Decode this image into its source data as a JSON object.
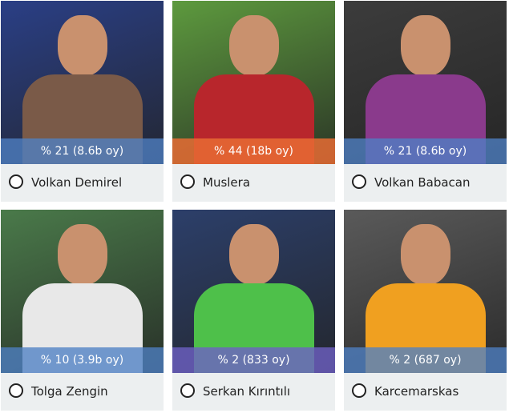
{
  "options": [
    {
      "name": "Volkan Demirel",
      "result": "% 21 (8.6b oy)",
      "strip_color": "rgba(78,128,196,0.78)",
      "photo": [
        "#2a3f86",
        "#7a5a48"
      ]
    },
    {
      "name": "Muslera",
      "result": "% 44 (18b oy)",
      "strip_color": "rgba(232,108,52,0.85)",
      "photo": [
        "#5d9a3e",
        "#b8262c"
      ]
    },
    {
      "name": "Volkan Babacan",
      "result": "% 21 (8.6b oy)",
      "strip_color": "rgba(78,128,196,0.78)",
      "photo": [
        "#3c3c3c",
        "#8a3a8c"
      ]
    },
    {
      "name": "Tolga Zengin",
      "result": "% 10 (3.9b oy)",
      "strip_color": "rgba(78,128,196,0.78)",
      "photo": [
        "#4a7a4a",
        "#e8e8e8"
      ]
    },
    {
      "name": "Serkan Kırıntılı",
      "result": "% 2 (833 oy)",
      "strip_color": "rgba(110,96,196,0.8)",
      "photo": [
        "#2c3f6a",
        "#4ec04a"
      ]
    },
    {
      "name": "Karcemarskas",
      "result": "% 2 (687 oy)",
      "strip_color": "rgba(78,128,196,0.78)",
      "photo": [
        "#5a5a5a",
        "#f0a020"
      ]
    }
  ]
}
